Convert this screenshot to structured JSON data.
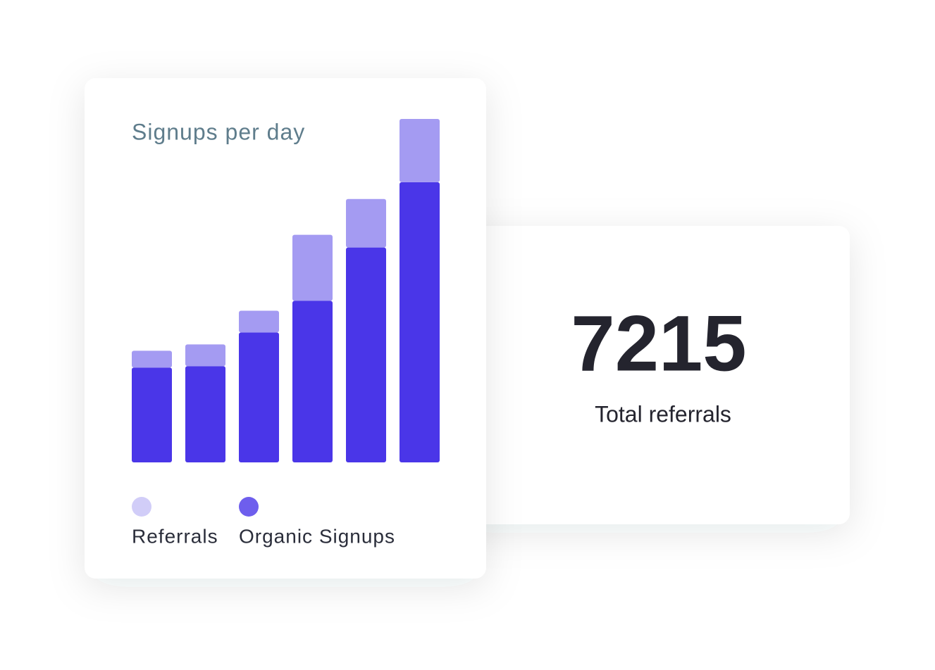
{
  "chart_data": {
    "type": "stacked-bar",
    "title": "Signups per day",
    "ylim": [
      0,
      490
    ],
    "series": [
      {
        "name": "Referrals",
        "color": "#a49bf2",
        "values": [
          24,
          31,
          31,
          94,
          69,
          90
        ]
      },
      {
        "name": "Organic Signups",
        "color": "#4a36e8",
        "values": [
          135,
          137,
          185,
          230,
          306,
          399
        ]
      }
    ]
  },
  "kpi": {
    "value": 7215,
    "label": "Total referrals"
  }
}
